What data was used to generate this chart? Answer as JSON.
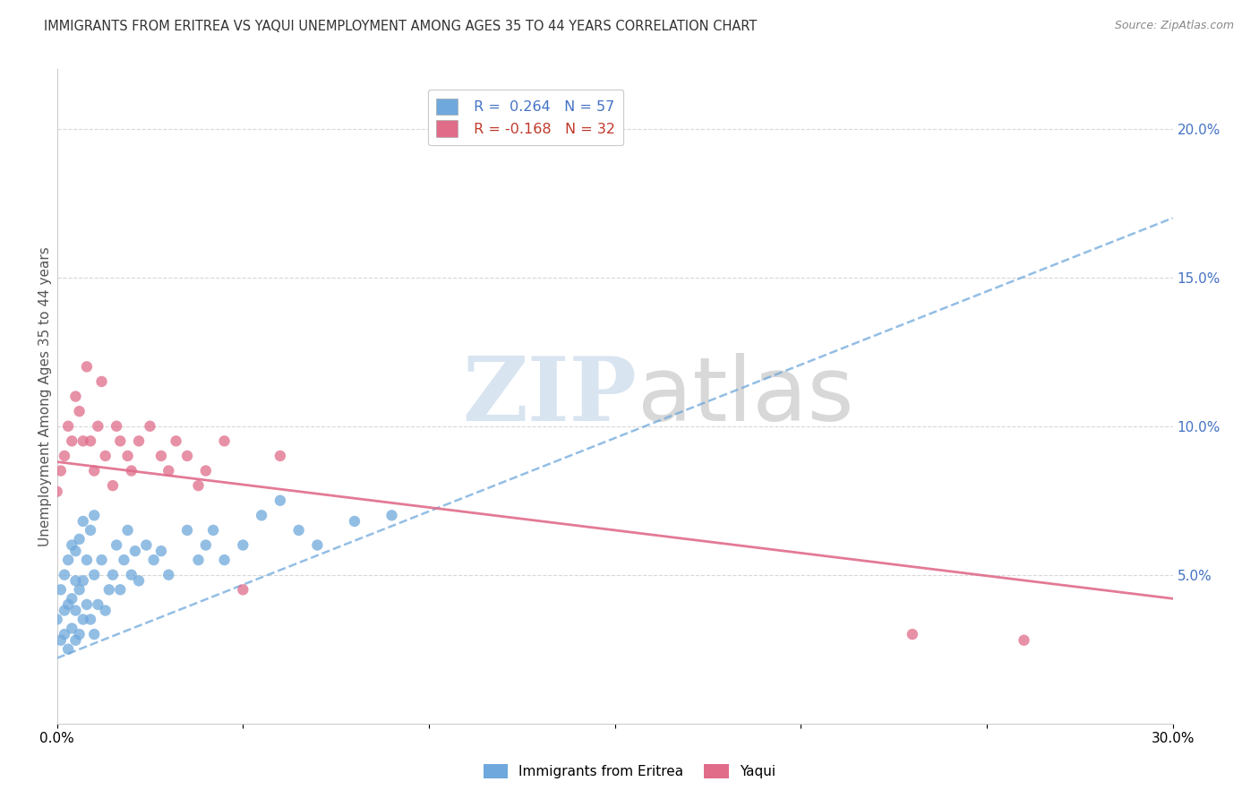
{
  "title": "IMMIGRANTS FROM ERITREA VS YAQUI UNEMPLOYMENT AMONG AGES 35 TO 44 YEARS CORRELATION CHART",
  "source": "Source: ZipAtlas.com",
  "ylabel": "Unemployment Among Ages 35 to 44 years",
  "xlim": [
    0.0,
    0.3
  ],
  "ylim": [
    0.0,
    0.22
  ],
  "xticks": [
    0.0,
    0.05,
    0.1,
    0.15,
    0.2,
    0.25,
    0.3
  ],
  "xticklabels": [
    "0.0%",
    "",
    "",
    "",
    "",
    "",
    "30.0%"
  ],
  "yticks_right": [
    0.0,
    0.05,
    0.1,
    0.15,
    0.2
  ],
  "yticklabels_right": [
    "",
    "5.0%",
    "10.0%",
    "15.0%",
    "20.0%"
  ],
  "series1_name": "Immigrants from Eritrea",
  "series1_color": "#6fa8dc",
  "series1_R": "0.264",
  "series1_N": "57",
  "series2_name": "Yaqui",
  "series2_color": "#e06c8a",
  "series2_R": "-0.168",
  "series2_N": "32",
  "series1_x": [
    0.0,
    0.001,
    0.001,
    0.002,
    0.002,
    0.002,
    0.003,
    0.003,
    0.003,
    0.004,
    0.004,
    0.004,
    0.005,
    0.005,
    0.005,
    0.005,
    0.006,
    0.006,
    0.006,
    0.007,
    0.007,
    0.007,
    0.008,
    0.008,
    0.009,
    0.009,
    0.01,
    0.01,
    0.01,
    0.011,
    0.012,
    0.013,
    0.014,
    0.015,
    0.016,
    0.017,
    0.018,
    0.019,
    0.02,
    0.021,
    0.022,
    0.024,
    0.026,
    0.028,
    0.03,
    0.035,
    0.038,
    0.04,
    0.042,
    0.045,
    0.05,
    0.055,
    0.06,
    0.065,
    0.07,
    0.08,
    0.09
  ],
  "series1_y": [
    0.035,
    0.028,
    0.045,
    0.03,
    0.038,
    0.05,
    0.025,
    0.04,
    0.055,
    0.032,
    0.042,
    0.06,
    0.028,
    0.038,
    0.048,
    0.058,
    0.03,
    0.045,
    0.062,
    0.035,
    0.048,
    0.068,
    0.04,
    0.055,
    0.035,
    0.065,
    0.03,
    0.05,
    0.07,
    0.04,
    0.055,
    0.038,
    0.045,
    0.05,
    0.06,
    0.045,
    0.055,
    0.065,
    0.05,
    0.058,
    0.048,
    0.06,
    0.055,
    0.058,
    0.05,
    0.065,
    0.055,
    0.06,
    0.065,
    0.055,
    0.06,
    0.07,
    0.075,
    0.065,
    0.06,
    0.068,
    0.07
  ],
  "series2_x": [
    0.0,
    0.001,
    0.002,
    0.003,
    0.004,
    0.005,
    0.006,
    0.007,
    0.008,
    0.009,
    0.01,
    0.011,
    0.012,
    0.013,
    0.015,
    0.016,
    0.017,
    0.019,
    0.02,
    0.022,
    0.025,
    0.028,
    0.03,
    0.032,
    0.035,
    0.038,
    0.04,
    0.045,
    0.05,
    0.06,
    0.23,
    0.26
  ],
  "series2_y": [
    0.078,
    0.085,
    0.09,
    0.1,
    0.095,
    0.11,
    0.105,
    0.095,
    0.12,
    0.095,
    0.085,
    0.1,
    0.115,
    0.09,
    0.08,
    0.1,
    0.095,
    0.09,
    0.085,
    0.095,
    0.1,
    0.09,
    0.085,
    0.095,
    0.09,
    0.08,
    0.085,
    0.095,
    0.045,
    0.09,
    0.03,
    0.028
  ],
  "series1_trend_x": [
    0.0,
    0.3
  ],
  "series1_trend_y": [
    0.022,
    0.17
  ],
  "series2_trend_x": [
    0.0,
    0.3
  ],
  "series2_trend_y": [
    0.088,
    0.042
  ],
  "watermark_zip": "ZIP",
  "watermark_atlas": "atlas",
  "background_color": "#ffffff",
  "grid_color": "#d8d8d8",
  "right_tick_color": "#4472c4",
  "legend_text_color1": "#4472c4",
  "legend_text_color2": "#c0392b"
}
